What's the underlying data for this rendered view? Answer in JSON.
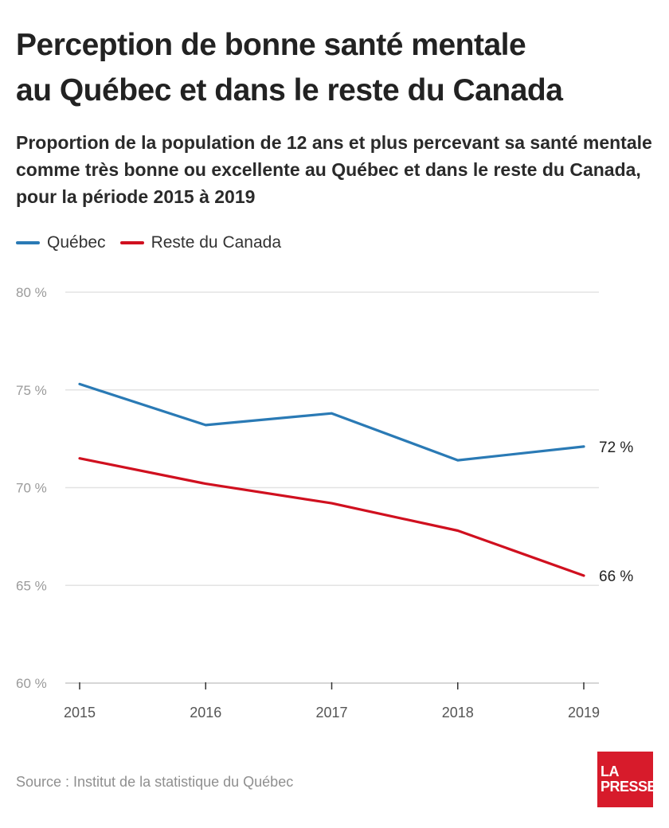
{
  "header": {
    "title_line1": "Perception de bonne santé mentale",
    "title_line2": "au Québec et dans le reste du Canada",
    "subtitle": "Proportion de la population de 12 ans et plus percevant sa santé mentale comme très bonne ou excellente au Québec et dans le reste du Canada, pour la période 2015 à 2019"
  },
  "legend": [
    {
      "label": "Québec",
      "color": "#2a7ab5"
    },
    {
      "label": "Reste du Canada",
      "color": "#d0101f"
    }
  ],
  "chart_data": {
    "type": "line",
    "title": "Perception de bonne santé mentale au Québec et dans le reste du Canada",
    "x": [
      "2015",
      "2016",
      "2017",
      "2018",
      "2019"
    ],
    "series": [
      {
        "name": "Québec",
        "color": "#2a7ab5",
        "values": [
          75.3,
          73.2,
          73.8,
          71.4,
          72.1
        ],
        "end_label": "72 %"
      },
      {
        "name": "Reste du Canada",
        "color": "#d0101f",
        "values": [
          71.5,
          70.2,
          69.2,
          67.8,
          65.5
        ],
        "end_label": "66 %"
      }
    ],
    "ylim": [
      60,
      80
    ],
    "yticks": [
      60,
      65,
      70,
      75,
      80
    ],
    "ytick_labels": [
      "60 %",
      "65 %",
      "70 %",
      "75 %",
      "80 %"
    ],
    "grid": true,
    "legend_position": "top-left"
  },
  "footer": {
    "source": "Source : Institut de la statistique du Québec",
    "logo_line1": "LA",
    "logo_line2": "PRESSE"
  }
}
